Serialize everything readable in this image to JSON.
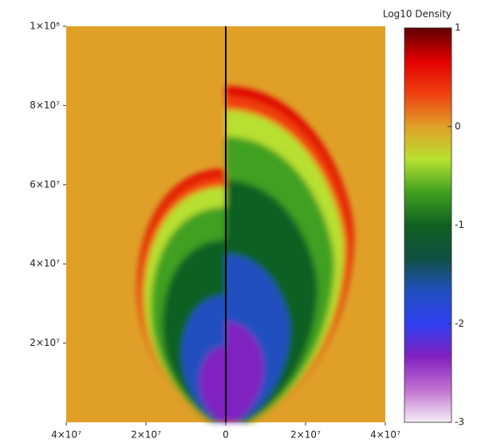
{
  "chart_data": {
    "type": "density-map",
    "colorbar_title": "Log10 Density",
    "xlim": [
      -40000000,
      40000000
    ],
    "xticks": [
      {
        "value": -40000000,
        "label": "4×10⁷"
      },
      {
        "value": -20000000,
        "label": "2×10⁷"
      },
      0,
      {
        "value": 20000000,
        "label": "2×10⁷"
      },
      {
        "value": 40000000,
        "label": "4×10⁷"
      }
    ],
    "ylim": [
      0,
      100000000
    ],
    "yticks": [
      {
        "value": 20000000,
        "label": "2×10⁷"
      },
      {
        "value": 40000000,
        "label": "4×10⁷"
      },
      {
        "value": 60000000,
        "label": "6×10⁷"
      },
      {
        "value": 80000000,
        "label": "8×10⁷"
      },
      {
        "value": 100000000,
        "label": "1×10⁸"
      }
    ],
    "clim": [
      -3,
      1
    ],
    "cticks": [
      1,
      0,
      -1,
      -2,
      -3
    ],
    "colormap": [
      "#f6eef6",
      "#c070d0",
      "#8020c0",
      "#3040f0",
      "#2050c0",
      "#105040",
      "#106020",
      "#40a020",
      "#b8e030",
      "#e0a028",
      "#f04010",
      "#e00000",
      "#600000"
    ]
  }
}
